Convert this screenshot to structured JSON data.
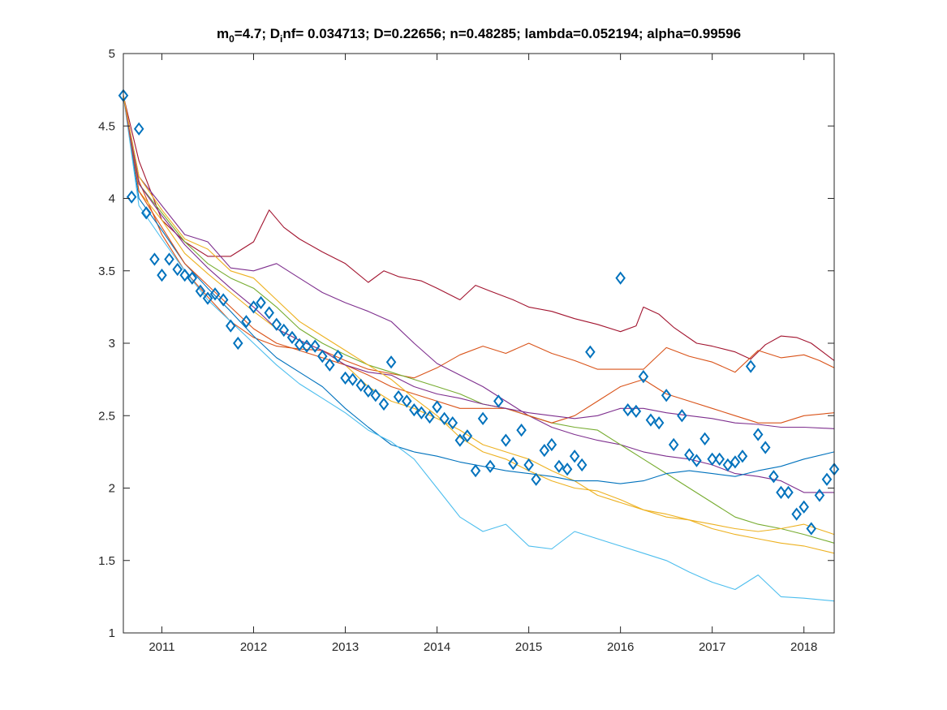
{
  "chart_data": {
    "type": "line",
    "title_parts": {
      "m_base": "m",
      "m_sub": "0",
      "m_rest": "=4.7; D",
      "d_sub": "i",
      "rest": "nf= 0.034713; D=0.22656; n=0.48285; lambda=0.052194; alpha=0.99596"
    },
    "xlim": [
      2010.58,
      2018.33
    ],
    "ylim": [
      1,
      5
    ],
    "x_ticks": [
      2011,
      2012,
      2013,
      2014,
      2015,
      2016,
      2017,
      2018
    ],
    "x_tick_labels": [
      "2011",
      "2012",
      "2013",
      "2014",
      "2015",
      "2016",
      "2017",
      "2018"
    ],
    "y_ticks": [
      1,
      1.5,
      2,
      2.5,
      3,
      3.5,
      4,
      4.5,
      5
    ],
    "y_tick_labels": [
      "1",
      "1.5",
      "2",
      "2.5",
      "3",
      "3.5",
      "4",
      "4.5",
      "5"
    ],
    "grid": false,
    "observed": {
      "marker": "diamond",
      "color": "#0072BD",
      "x": [
        2010.58,
        2010.67,
        2010.75,
        2010.83,
        2010.92,
        2011.0,
        2011.08,
        2011.17,
        2011.25,
        2011.33,
        2011.42,
        2011.5,
        2011.58,
        2011.67,
        2011.75,
        2011.83,
        2011.92,
        2012.0,
        2012.08,
        2012.17,
        2012.25,
        2012.33,
        2012.42,
        2012.5,
        2012.58,
        2012.67,
        2012.75,
        2012.83,
        2012.92,
        2013.0,
        2013.08,
        2013.17,
        2013.25,
        2013.33,
        2013.42,
        2013.5,
        2013.58,
        2013.67,
        2013.75,
        2013.83,
        2013.92,
        2014.0,
        2014.08,
        2014.17,
        2014.25,
        2014.33,
        2014.42,
        2014.5,
        2014.58,
        2014.67,
        2014.75,
        2014.83,
        2014.92,
        2015.0,
        2015.08,
        2015.17,
        2015.25,
        2015.33,
        2015.42,
        2015.5,
        2015.58,
        2015.67,
        2016.0,
        2016.08,
        2016.17,
        2016.25,
        2016.33,
        2016.42,
        2016.5,
        2016.58,
        2016.67,
        2016.75,
        2016.83,
        2016.92,
        2017.0,
        2017.08,
        2017.17,
        2017.25,
        2017.33,
        2017.42,
        2017.5,
        2017.58,
        2017.67,
        2017.75,
        2017.83,
        2017.92,
        2018.0,
        2018.08,
        2018.17,
        2018.25,
        2018.33
      ],
      "y": [
        4.71,
        4.01,
        4.48,
        3.9,
        3.58,
        3.47,
        3.58,
        3.51,
        3.47,
        3.45,
        3.36,
        3.31,
        3.34,
        3.3,
        3.12,
        3.0,
        3.15,
        3.25,
        3.28,
        3.21,
        3.13,
        3.09,
        3.04,
        2.99,
        2.98,
        2.98,
        2.91,
        2.85,
        2.91,
        2.76,
        2.75,
        2.71,
        2.67,
        2.64,
        2.58,
        2.87,
        2.63,
        2.6,
        2.54,
        2.52,
        2.49,
        2.56,
        2.48,
        2.45,
        2.33,
        2.36,
        2.12,
        2.48,
        2.15,
        2.6,
        2.33,
        2.17,
        2.4,
        2.16,
        2.06,
        2.26,
        2.3,
        2.15,
        2.13,
        2.22,
        2.16,
        2.94,
        3.45,
        2.54,
        2.53,
        2.77,
        2.47,
        2.45,
        2.64,
        2.3,
        2.5,
        2.23,
        2.19,
        2.34,
        2.2,
        2.2,
        2.16,
        2.18,
        2.22,
        2.84,
        2.37,
        2.28,
        2.08,
        1.97,
        1.97,
        1.82,
        1.87,
        1.72,
        1.95,
        2.06,
        2.13
      ]
    },
    "series": [
      {
        "color": "#A2142F",
        "x": [
          2010.58,
          2010.75,
          2011.0,
          2011.25,
          2011.5,
          2011.75,
          2012.0,
          2012.17,
          2012.33,
          2012.5,
          2012.75,
          2013.0,
          2013.25,
          2013.42,
          2013.58,
          2013.83,
          2014.0,
          2014.25,
          2014.42,
          2014.58,
          2014.83,
          2015.0,
          2015.25,
          2015.5,
          2015.75,
          2016.0,
          2016.17,
          2016.25,
          2016.42,
          2016.58,
          2016.83,
          2017.0,
          2017.25,
          2017.42,
          2017.58,
          2017.75,
          2017.92,
          2018.08,
          2018.33
        ],
        "y": [
          4.71,
          4.26,
          3.85,
          3.7,
          3.6,
          3.6,
          3.7,
          3.92,
          3.8,
          3.72,
          3.63,
          3.55,
          3.42,
          3.5,
          3.46,
          3.43,
          3.38,
          3.3,
          3.4,
          3.36,
          3.3,
          3.25,
          3.22,
          3.17,
          3.13,
          3.08,
          3.12,
          3.25,
          3.2,
          3.11,
          3.0,
          2.98,
          2.94,
          2.89,
          2.99,
          3.05,
          3.04,
          3.0,
          2.88
        ]
      },
      {
        "color": "#D95319",
        "x": [
          2010.58,
          2010.75,
          2011.0,
          2011.25,
          2011.5,
          2011.75,
          2012.0,
          2012.25,
          2012.5,
          2012.75,
          2013.0,
          2013.25,
          2013.5,
          2013.75,
          2014.0,
          2014.25,
          2014.5,
          2014.75,
          2015.0,
          2015.25,
          2015.5,
          2015.75,
          2016.0,
          2016.25,
          2016.5,
          2016.75,
          2017.0,
          2017.25,
          2017.5,
          2017.75,
          2018.0,
          2018.17,
          2018.33
        ],
        "y": [
          4.71,
          4.12,
          3.75,
          3.5,
          3.32,
          3.15,
          3.04,
          2.98,
          2.96,
          2.95,
          2.88,
          2.82,
          2.79,
          2.76,
          2.83,
          2.92,
          2.98,
          2.93,
          3.0,
          2.93,
          2.88,
          2.82,
          2.82,
          2.82,
          2.97,
          2.91,
          2.87,
          2.8,
          2.95,
          2.9,
          2.92,
          2.88,
          2.83
        ]
      },
      {
        "color": "#7E2F8E",
        "x": [
          2010.58,
          2010.75,
          2011.0,
          2011.25,
          2011.5,
          2011.75,
          2012.0,
          2012.25,
          2012.5,
          2012.75,
          2013.0,
          2013.25,
          2013.5,
          2013.75,
          2014.0,
          2014.25,
          2014.5,
          2014.75,
          2015.0,
          2015.25,
          2015.5,
          2015.75,
          2016.0,
          2016.25,
          2016.5,
          2016.75,
          2017.0,
          2017.25,
          2017.5,
          2017.75,
          2018.0,
          2018.33
        ],
        "y": [
          4.71,
          4.15,
          3.95,
          3.75,
          3.7,
          3.52,
          3.5,
          3.55,
          3.45,
          3.35,
          3.28,
          3.22,
          3.15,
          3.0,
          2.86,
          2.78,
          2.7,
          2.6,
          2.5,
          2.42,
          2.37,
          2.33,
          2.3,
          2.25,
          2.22,
          2.2,
          2.16,
          2.1,
          2.08,
          2.05,
          1.97,
          1.97
        ]
      },
      {
        "color": "#77AC30",
        "x": [
          2010.58,
          2010.75,
          2011.0,
          2011.25,
          2011.5,
          2011.75,
          2012.0,
          2012.25,
          2012.5,
          2012.75,
          2013.0,
          2013.25,
          2013.5,
          2013.75,
          2014.0,
          2014.25,
          2014.5,
          2014.75,
          2015.0,
          2015.25,
          2015.5,
          2015.75,
          2016.0,
          2016.25,
          2016.5,
          2016.75,
          2017.0,
          2017.25,
          2017.5,
          2017.75,
          2018.0,
          2018.33
        ],
        "y": [
          4.71,
          4.1,
          3.9,
          3.7,
          3.55,
          3.45,
          3.38,
          3.25,
          3.1,
          3.0,
          2.92,
          2.85,
          2.8,
          2.75,
          2.7,
          2.65,
          2.58,
          2.55,
          2.5,
          2.45,
          2.42,
          2.4,
          2.3,
          2.2,
          2.1,
          2.0,
          1.9,
          1.8,
          1.75,
          1.72,
          1.68,
          1.62
        ]
      },
      {
        "color": "#EDB120",
        "x": [
          2010.58,
          2010.75,
          2011.0,
          2011.25,
          2011.5,
          2011.75,
          2012.0,
          2012.25,
          2012.5,
          2012.75,
          2013.0,
          2013.25,
          2013.5,
          2013.75,
          2014.0,
          2014.25,
          2014.5,
          2014.75,
          2015.0,
          2015.25,
          2015.5,
          2015.75,
          2016.0,
          2016.25,
          2016.5,
          2016.75,
          2017.0,
          2017.25,
          2017.5,
          2017.75,
          2018.0,
          2018.33
        ],
        "y": [
          4.71,
          4.05,
          3.85,
          3.62,
          3.48,
          3.35,
          3.22,
          3.1,
          3.02,
          2.95,
          2.85,
          2.7,
          2.6,
          2.55,
          2.48,
          2.4,
          2.3,
          2.25,
          2.2,
          2.12,
          2.05,
          1.95,
          1.9,
          1.85,
          1.82,
          1.78,
          1.72,
          1.68,
          1.65,
          1.62,
          1.6,
          1.55
        ]
      },
      {
        "color": "#0072BD",
        "x": [
          2010.58,
          2010.75,
          2011.0,
          2011.25,
          2011.5,
          2011.75,
          2012.0,
          2012.25,
          2012.5,
          2012.75,
          2013.0,
          2013.25,
          2013.5,
          2013.75,
          2014.0,
          2014.25,
          2014.5,
          2014.75,
          2015.0,
          2015.25,
          2015.5,
          2015.75,
          2016.0,
          2016.25,
          2016.5,
          2016.75,
          2017.0,
          2017.25,
          2017.5,
          2017.75,
          2018.0,
          2018.33
        ],
        "y": [
          4.71,
          4.0,
          3.78,
          3.55,
          3.38,
          3.22,
          3.05,
          2.9,
          2.8,
          2.7,
          2.55,
          2.42,
          2.3,
          2.25,
          2.22,
          2.18,
          2.15,
          2.12,
          2.1,
          2.08,
          2.05,
          2.05,
          2.03,
          2.05,
          2.1,
          2.12,
          2.1,
          2.08,
          2.12,
          2.15,
          2.2,
          2.25
        ]
      },
      {
        "color": "#4DBEEE",
        "x": [
          2010.58,
          2010.75,
          2011.0,
          2011.25,
          2011.5,
          2011.75,
          2012.0,
          2012.25,
          2012.5,
          2012.75,
          2013.0,
          2013.25,
          2013.5,
          2013.75,
          2014.0,
          2014.25,
          2014.5,
          2014.75,
          2015.0,
          2015.25,
          2015.5,
          2015.75,
          2016.0,
          2016.25,
          2016.5,
          2016.75,
          2017.0,
          2017.25,
          2017.5,
          2017.75,
          2018.0,
          2018.33
        ],
        "y": [
          4.71,
          3.95,
          3.72,
          3.5,
          3.3,
          3.15,
          3.0,
          2.85,
          2.72,
          2.62,
          2.52,
          2.4,
          2.32,
          2.2,
          2.0,
          1.8,
          1.7,
          1.75,
          1.6,
          1.58,
          1.7,
          1.65,
          1.6,
          1.55,
          1.5,
          1.42,
          1.35,
          1.3,
          1.4,
          1.25,
          1.24,
          1.22
        ]
      },
      {
        "color": "#D95319",
        "x": [
          2010.58,
          2010.75,
          2011.0,
          2011.25,
          2011.5,
          2011.75,
          2012.0,
          2012.25,
          2012.5,
          2012.75,
          2013.0,
          2013.25,
          2013.5,
          2013.75,
          2014.0,
          2014.25,
          2014.5,
          2014.75,
          2015.0,
          2015.25,
          2015.5,
          2015.75,
          2016.0,
          2016.25,
          2016.5,
          2016.75,
          2017.0,
          2017.25,
          2017.5,
          2017.75,
          2018.0,
          2018.33
        ],
        "y": [
          4.71,
          4.05,
          3.8,
          3.55,
          3.4,
          3.25,
          3.1,
          3.0,
          2.95,
          2.9,
          2.85,
          2.78,
          2.7,
          2.65,
          2.6,
          2.55,
          2.55,
          2.55,
          2.5,
          2.45,
          2.5,
          2.6,
          2.7,
          2.75,
          2.65,
          2.6,
          2.55,
          2.5,
          2.45,
          2.45,
          2.5,
          2.52
        ]
      },
      {
        "color": "#7E2F8E",
        "x": [
          2010.58,
          2010.75,
          2011.0,
          2011.25,
          2011.5,
          2011.75,
          2012.0,
          2012.25,
          2012.5,
          2012.75,
          2013.0,
          2013.25,
          2013.5,
          2013.75,
          2014.0,
          2014.25,
          2014.5,
          2014.75,
          2015.0,
          2015.25,
          2015.5,
          2015.75,
          2016.0,
          2016.25,
          2016.5,
          2016.75,
          2017.0,
          2017.25,
          2017.5,
          2017.75,
          2018.0,
          2018.33
        ],
        "y": [
          4.71,
          4.1,
          3.88,
          3.68,
          3.52,
          3.38,
          3.25,
          3.1,
          3.02,
          2.95,
          2.85,
          2.8,
          2.78,
          2.7,
          2.65,
          2.62,
          2.58,
          2.55,
          2.52,
          2.5,
          2.48,
          2.5,
          2.55,
          2.55,
          2.52,
          2.5,
          2.48,
          2.45,
          2.44,
          2.42,
          2.42,
          2.41
        ]
      },
      {
        "color": "#EDB120",
        "x": [
          2010.58,
          2010.75,
          2011.0,
          2011.25,
          2011.5,
          2011.75,
          2012.0,
          2012.25,
          2012.5,
          2012.75,
          2013.0,
          2013.25,
          2013.5,
          2013.75,
          2014.0,
          2014.25,
          2014.5,
          2014.75,
          2015.0,
          2015.25,
          2015.5,
          2015.75,
          2016.0,
          2016.25,
          2016.5,
          2016.75,
          2017.0,
          2017.25,
          2017.5,
          2017.75,
          2018.0,
          2018.33
        ],
        "y": [
          4.71,
          4.15,
          3.92,
          3.72,
          3.65,
          3.5,
          3.45,
          3.3,
          3.15,
          3.05,
          2.95,
          2.85,
          2.75,
          2.62,
          2.5,
          2.35,
          2.25,
          2.2,
          2.12,
          2.05,
          2.0,
          1.98,
          1.92,
          1.85,
          1.8,
          1.78,
          1.75,
          1.72,
          1.7,
          1.72,
          1.75,
          1.68
        ]
      }
    ]
  }
}
